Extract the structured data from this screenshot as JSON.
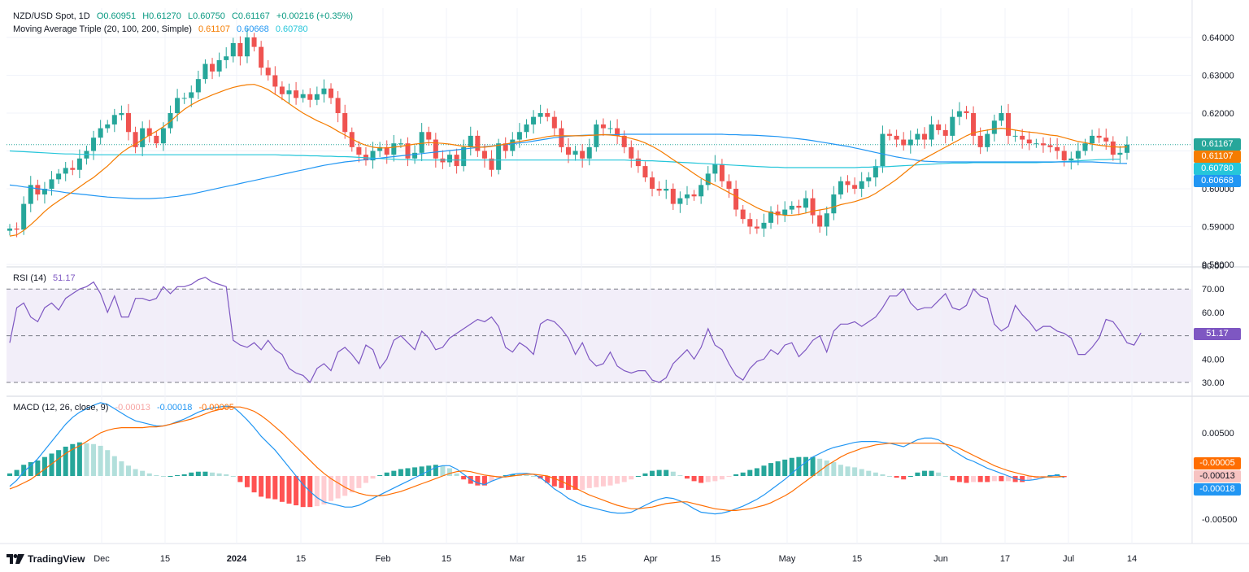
{
  "header": {
    "symbol": "NZD/USD Spot, 1D",
    "open": "O0.60951",
    "high": "H0.61270",
    "low": "L0.60750",
    "close": "C0.61167",
    "change": "+0.00216 (+0.35%)",
    "ma_label": "Moving Average Triple (20, 100, 200, Simple)",
    "ma20": "0.61107",
    "ma100": "0.60668",
    "ma200": "0.60780"
  },
  "rsi": {
    "label": "RSI (14)",
    "value": "51.17"
  },
  "macd": {
    "label": "MACD (12, 26, close, 9)",
    "hist": "-0.00013",
    "macd": "-0.00018",
    "signal": "-0.00005"
  },
  "price_tags": {
    "close": "0.61167",
    "ma20": "0.61107",
    "ma200": "0.60780",
    "ma100": "0.60668"
  },
  "rsi_tag": "51.17",
  "macd_tags": {
    "signal": "-0.00005",
    "hist": "-0.00013",
    "macd": "-0.00018"
  },
  "branding": "TradingView",
  "colors": {
    "up": "#26a69a",
    "down": "#ef5350",
    "ma20": "#f57c00",
    "ma100": "#2196f3",
    "ma200": "#26c6da",
    "rsi": "#7e57c2",
    "macd": "#2196f3",
    "signal": "#ff6d00"
  },
  "chart_data": {
    "type": "candlestick",
    "price_axis": {
      "ticks": [
        "0.64000",
        "0.63000",
        "0.62000",
        "0.61000",
        "0.60000",
        "0.59000",
        "0.58000"
      ],
      "ylim": [
        0.58,
        0.645
      ]
    },
    "x_ticks": [
      "Dec",
      "15",
      "2024",
      "15",
      "Feb",
      "15",
      "Mar",
      "15",
      "Apr",
      "15",
      "May",
      "15",
      "Jun",
      "17",
      "Jul",
      "14"
    ],
    "rsi_axis": {
      "ticks": [
        "80.00",
        "70.00",
        "60.00",
        "50.00",
        "40.00",
        "30.00"
      ],
      "levels": [
        70,
        50,
        30
      ]
    },
    "macd_axis": {
      "ticks": [
        "0.00500",
        "0.00000",
        "-0.00500"
      ]
    },
    "close": [
      0.5895,
      0.5892,
      0.596,
      0.601,
      0.5985,
      0.6,
      0.6025,
      0.604,
      0.6055,
      0.605,
      0.608,
      0.61,
      0.6135,
      0.616,
      0.617,
      0.6195,
      0.62,
      0.615,
      0.611,
      0.616,
      0.614,
      0.612,
      0.616,
      0.62,
      0.624,
      0.624,
      0.6255,
      0.629,
      0.633,
      0.631,
      0.634,
      0.635,
      0.6385,
      0.635,
      0.64,
      0.6375,
      0.632,
      0.63,
      0.627,
      0.625,
      0.626,
      0.624,
      0.625,
      0.6235,
      0.625,
      0.6265,
      0.624,
      0.62,
      0.615,
      0.611,
      0.609,
      0.6075,
      0.61,
      0.611,
      0.609,
      0.612,
      0.612,
      0.608,
      0.6095,
      0.615,
      0.613,
      0.608,
      0.607,
      0.609,
      0.606,
      0.611,
      0.614,
      0.61,
      0.608,
      0.605,
      0.612,
      0.61,
      0.613,
      0.615,
      0.617,
      0.619,
      0.62,
      0.619,
      0.616,
      0.611,
      0.609,
      0.61,
      0.608,
      0.611,
      0.617,
      0.616,
      0.616,
      0.614,
      0.611,
      0.608,
      0.606,
      0.603,
      0.6,
      0.5995,
      0.6,
      0.596,
      0.5975,
      0.5985,
      0.598,
      0.601,
      0.604,
      0.6065,
      0.602,
      0.6,
      0.5945,
      0.592,
      0.59,
      0.5895,
      0.591,
      0.594,
      0.593,
      0.5945,
      0.5955,
      0.595,
      0.5975,
      0.593,
      0.59,
      0.5935,
      0.5985,
      0.602,
      0.601,
      0.6,
      0.602,
      0.603,
      0.606,
      0.6145,
      0.614,
      0.613,
      0.6115,
      0.613,
      0.6145,
      0.613,
      0.617,
      0.6155,
      0.614,
      0.619,
      0.6205,
      0.62,
      0.614,
      0.611,
      0.6145,
      0.618,
      0.62,
      0.614,
      0.614,
      0.613,
      0.612,
      0.612,
      0.6115,
      0.611,
      0.61,
      0.6075,
      0.608,
      0.61,
      0.612,
      0.614,
      0.6135,
      0.6125,
      0.609,
      0.6095,
      0.61167
    ],
    "ma20": [
      0.5875,
      0.5878,
      0.589,
      0.5905,
      0.5922,
      0.594,
      0.5955,
      0.5968,
      0.598,
      0.5992,
      0.6005,
      0.6018,
      0.603,
      0.6045,
      0.606,
      0.6078,
      0.6095,
      0.6108,
      0.6118,
      0.613,
      0.6142,
      0.6152,
      0.6164,
      0.6178,
      0.6195,
      0.621,
      0.6222,
      0.6232,
      0.624,
      0.6248,
      0.6255,
      0.6262,
      0.6268,
      0.6272,
      0.6275,
      0.6276,
      0.627,
      0.6262,
      0.625,
      0.6238,
      0.6225,
      0.6212,
      0.62,
      0.619,
      0.618,
      0.6172,
      0.6163,
      0.6152,
      0.6142,
      0.6132,
      0.6122,
      0.6115,
      0.611,
      0.6108,
      0.6108,
      0.611,
      0.6112,
      0.6115,
      0.6118,
      0.612,
      0.6122,
      0.6121,
      0.612,
      0.6118,
      0.6115,
      0.6112,
      0.6111,
      0.611,
      0.611,
      0.6112,
      0.6115,
      0.6118,
      0.6122,
      0.6125,
      0.6128,
      0.6131,
      0.6134,
      0.6138,
      0.614,
      0.614,
      0.614,
      0.614,
      0.614,
      0.6141,
      0.6142,
      0.6143,
      0.6142,
      0.614,
      0.6137,
      0.6133,
      0.6128,
      0.6121,
      0.6112,
      0.6102,
      0.609,
      0.6077,
      0.6065,
      0.6053,
      0.604,
      0.6028,
      0.6018,
      0.601,
      0.6,
      0.599,
      0.598,
      0.597,
      0.596,
      0.595,
      0.5942,
      0.5937,
      0.5933,
      0.593,
      0.593,
      0.5932,
      0.5936,
      0.5941,
      0.5944,
      0.5947,
      0.5952,
      0.5958,
      0.5962,
      0.5966,
      0.5972,
      0.5978,
      0.5988,
      0.6,
      0.6012,
      0.6025,
      0.604,
      0.6055,
      0.607,
      0.608,
      0.609,
      0.61,
      0.611,
      0.612,
      0.613,
      0.614,
      0.6148,
      0.6152,
      0.6155,
      0.6158,
      0.616,
      0.6158,
      0.6155,
      0.6152,
      0.615,
      0.6148,
      0.6145,
      0.6142,
      0.614,
      0.6135,
      0.613,
      0.6125,
      0.6122,
      0.6118,
      0.6115,
      0.6113,
      0.6111,
      0.611,
      0.61107
    ],
    "ma100": [
      0.601,
      0.6008,
      0.6005,
      0.6003,
      0.6,
      0.5998,
      0.5995,
      0.5993,
      0.599,
      0.5988,
      0.5986,
      0.5984,
      0.5982,
      0.598,
      0.5978,
      0.5977,
      0.5976,
      0.5975,
      0.5974,
      0.5974,
      0.5974,
      0.5975,
      0.5976,
      0.5978,
      0.598,
      0.5983,
      0.5986,
      0.599,
      0.5994,
      0.5998,
      0.6002,
      0.6006,
      0.601,
      0.6014,
      0.6018,
      0.6022,
      0.6026,
      0.603,
      0.6034,
      0.6038,
      0.6042,
      0.6046,
      0.605,
      0.6054,
      0.6058,
      0.6062,
      0.6065,
      0.6068,
      0.6071,
      0.6073,
      0.6075,
      0.6077,
      0.6079,
      0.6081,
      0.6083,
      0.6085,
      0.6087,
      0.6089,
      0.6091,
      0.6093,
      0.6095,
      0.6097,
      0.6099,
      0.6101,
      0.6103,
      0.6105,
      0.6107,
      0.6109,
      0.6111,
      0.6113,
      0.6115,
      0.6117,
      0.6119,
      0.6121,
      0.6123,
      0.6126,
      0.6129,
      0.6132,
      0.6135,
      0.6137,
      0.6139,
      0.614,
      0.6141,
      0.6142,
      0.6142,
      0.6143,
      0.6143,
      0.6143,
      0.6144,
      0.6144,
      0.6144,
      0.6144,
      0.6144,
      0.6144,
      0.6144,
      0.6144,
      0.6144,
      0.6144,
      0.6144,
      0.6144,
      0.6144,
      0.6144,
      0.6144,
      0.6143,
      0.6143,
      0.6142,
      0.6142,
      0.6141,
      0.614,
      0.6139,
      0.6138,
      0.6136,
      0.6134,
      0.6132,
      0.613,
      0.6127,
      0.6124,
      0.6121,
      0.6118,
      0.6115,
      0.6112,
      0.6108,
      0.6104,
      0.61,
      0.6096,
      0.6092,
      0.6088,
      0.6084,
      0.6081,
      0.6078,
      0.6075,
      0.6073,
      0.6072,
      0.6071,
      0.6071,
      0.6071,
      0.6071,
      0.6071,
      0.6071,
      0.6071,
      0.6071,
      0.6071,
      0.6071,
      0.6071,
      0.6071,
      0.6071,
      0.6071,
      0.6071,
      0.6071,
      0.6071,
      0.6071,
      0.6071,
      0.6071,
      0.6071,
      0.6071,
      0.6071,
      0.607,
      0.6069,
      0.6068,
      0.6067,
      0.60668
    ],
    "ma200": [
      0.61,
      0.6099,
      0.6098,
      0.6097,
      0.6096,
      0.6095,
      0.6094,
      0.6093,
      0.6092,
      0.6092,
      0.6091,
      0.6091,
      0.609,
      0.609,
      0.609,
      0.609,
      0.609,
      0.609,
      0.609,
      0.609,
      0.609,
      0.609,
      0.609,
      0.609,
      0.609,
      0.609,
      0.609,
      0.609,
      0.609,
      0.609,
      0.609,
      0.609,
      0.609,
      0.609,
      0.609,
      0.609,
      0.609,
      0.609,
      0.609,
      0.6089,
      0.6089,
      0.6088,
      0.6088,
      0.6087,
      0.6087,
      0.6086,
      0.6086,
      0.6085,
      0.6085,
      0.6084,
      0.6083,
      0.6082,
      0.6081,
      0.608,
      0.6079,
      0.6078,
      0.6077,
      0.6077,
      0.6076,
      0.6076,
      0.6076,
      0.6076,
      0.6076,
      0.6076,
      0.6076,
      0.6076,
      0.6076,
      0.6076,
      0.6076,
      0.6076,
      0.6076,
      0.6076,
      0.6076,
      0.6076,
      0.6076,
      0.6076,
      0.6076,
      0.6076,
      0.6076,
      0.6076,
      0.6076,
      0.6076,
      0.6076,
      0.6076,
      0.6076,
      0.6076,
      0.6076,
      0.6076,
      0.6076,
      0.6075,
      0.6075,
      0.6074,
      0.6074,
      0.6073,
      0.6072,
      0.6071,
      0.607,
      0.6069,
      0.6068,
      0.6067,
      0.6066,
      0.6065,
      0.6064,
      0.6063,
      0.6062,
      0.6061,
      0.606,
      0.6059,
      0.6058,
      0.6057,
      0.6057,
      0.6056,
      0.6056,
      0.6056,
      0.6056,
      0.6056,
      0.6056,
      0.6056,
      0.6056,
      0.6056,
      0.6056,
      0.6056,
      0.6057,
      0.6057,
      0.6058,
      0.6058,
      0.6059,
      0.606,
      0.6061,
      0.6062,
      0.6063,
      0.6064,
      0.6065,
      0.6066,
      0.6067,
      0.6068,
      0.6068,
      0.6068,
      0.6069,
      0.6069,
      0.6069,
      0.6069,
      0.6069,
      0.6069,
      0.6069,
      0.6069,
      0.6069,
      0.6069,
      0.607,
      0.607,
      0.6071,
      0.6072,
      0.6073,
      0.6074,
      0.6075,
      0.6076,
      0.6077,
      0.6077,
      0.6078,
      0.6078
    ],
    "rsi": [
      47,
      62,
      64,
      58,
      56,
      62,
      64,
      61,
      66,
      68,
      70,
      71,
      73,
      68,
      60,
      67,
      58,
      58,
      66,
      66,
      65,
      66,
      71,
      68,
      71,
      71,
      72,
      74,
      75,
      73,
      72,
      71,
      48,
      46,
      45,
      47,
      44,
      48,
      44,
      42,
      36,
      34,
      33,
      30,
      36,
      38,
      35,
      43,
      45,
      42,
      38,
      46,
      44,
      36,
      40,
      48,
      50,
      47,
      44,
      52,
      49,
      44,
      45,
      49,
      51,
      53,
      55,
      57,
      56,
      58,
      54,
      45,
      43,
      47,
      45,
      42,
      55,
      57,
      56,
      53,
      49,
      42,
      47,
      40,
      37,
      38,
      43,
      37,
      35,
      34,
      35,
      35,
      31,
      30,
      32,
      38,
      41,
      44,
      40,
      45,
      53,
      46,
      44,
      38,
      33,
      31,
      36,
      39,
      40,
      44,
      42,
      46,
      47,
      41,
      44,
      48,
      50,
      43,
      52,
      55,
      55,
      56,
      54,
      56,
      58,
      62,
      67,
      67,
      70,
      64,
      61,
      62,
      62,
      65,
      68,
      62,
      61,
      63,
      70,
      67,
      66,
      55,
      52,
      54,
      63,
      59,
      56,
      52,
      54,
      54,
      52,
      51,
      49,
      42,
      42,
      45,
      49,
      57,
      56,
      52,
      47,
      46,
      51.17
    ],
    "macd_line": [
      -0.0012,
      -0.0005,
      0.0005,
      0.0012,
      0.002,
      0.003,
      0.004,
      0.005,
      0.006,
      0.0068,
      0.0074,
      0.0078,
      0.0082,
      0.0085,
      0.0083,
      0.0078,
      0.0073,
      0.0068,
      0.0064,
      0.0062,
      0.006,
      0.0058,
      0.0058,
      0.006,
      0.0063,
      0.0066,
      0.007,
      0.0074,
      0.0077,
      0.0079,
      0.008,
      0.0081,
      0.008,
      0.0073,
      0.0065,
      0.0056,
      0.0046,
      0.0038,
      0.003,
      0.002,
      0.001,
      0.0,
      -0.001,
      -0.0018,
      -0.0025,
      -0.003,
      -0.0032,
      -0.0034,
      -0.0036,
      -0.0036,
      -0.0034,
      -0.003,
      -0.0026,
      -0.0022,
      -0.0018,
      -0.0014,
      -0.001,
      -0.0006,
      -0.0002,
      0.0002,
      0.0006,
      0.001,
      0.0012,
      0.0012,
      0.0008,
      0.0002,
      -0.0004,
      -0.0008,
      -0.001,
      -0.0006,
      -0.0003,
      0.0,
      0.0002,
      0.0003,
      0.0003,
      0.0002,
      -0.0002,
      -0.0008,
      -0.0015,
      -0.002,
      -0.0026,
      -0.003,
      -0.0034,
      -0.0036,
      -0.0038,
      -0.004,
      -0.0042,
      -0.0043,
      -0.0043,
      -0.0042,
      -0.0038,
      -0.0034,
      -0.003,
      -0.0027,
      -0.0025,
      -0.0026,
      -0.0029,
      -0.0033,
      -0.0038,
      -0.0042,
      -0.0043,
      -0.0044,
      -0.0043,
      -0.0041,
      -0.0038,
      -0.0035,
      -0.0031,
      -0.0027,
      -0.0022,
      -0.0016,
      -0.001,
      -0.0004,
      0.0003,
      0.001,
      0.0016,
      0.0022,
      0.0026,
      0.003,
      0.0033,
      0.0035,
      0.0037,
      0.0039,
      0.004,
      0.004,
      0.004,
      0.0039,
      0.0038,
      0.0036,
      0.0034,
      0.0038,
      0.0042,
      0.0044,
      0.0044,
      0.0042,
      0.0037,
      0.003,
      0.0025,
      0.002,
      0.0017,
      0.0013,
      0.0009,
      0.0006,
      0.0003,
      0.0,
      -0.0003,
      -0.0005,
      -0.0005,
      -0.0004,
      -0.0002,
      0.0,
      0.0001,
      -0.00018
    ],
    "signal_line": [
      -0.0015,
      -0.0012,
      -0.0008,
      -0.0004,
      0.0002,
      0.0008,
      0.0014,
      0.002,
      0.0026,
      0.0031,
      0.0035,
      0.004,
      0.0045,
      0.005,
      0.0053,
      0.0055,
      0.0056,
      0.0056,
      0.0056,
      0.0056,
      0.0057,
      0.0057,
      0.0058,
      0.006,
      0.0062,
      0.0064,
      0.0066,
      0.0069,
      0.0072,
      0.0075,
      0.0077,
      0.0079,
      0.008,
      0.008,
      0.0078,
      0.0075,
      0.007,
      0.0064,
      0.0057,
      0.005,
      0.0042,
      0.0034,
      0.0026,
      0.0018,
      0.001,
      0.0003,
      -0.0003,
      -0.0008,
      -0.0013,
      -0.0017,
      -0.002,
      -0.0022,
      -0.0023,
      -0.0023,
      -0.0022,
      -0.002,
      -0.0018,
      -0.0015,
      -0.0012,
      -0.0009,
      -0.0006,
      -0.0003,
      0.0,
      0.0003,
      0.0005,
      0.0006,
      0.0005,
      0.0003,
      0.0001,
      0.0,
      -0.0001,
      -0.0001,
      0.0,
      0.0001,
      0.0002,
      0.0002,
      0.0001,
      0.0,
      -0.0003,
      -0.0006,
      -0.001,
      -0.0014,
      -0.0018,
      -0.0022,
      -0.0025,
      -0.0028,
      -0.0031,
      -0.0034,
      -0.0036,
      -0.0038,
      -0.0038,
      -0.0037,
      -0.0036,
      -0.0034,
      -0.0032,
      -0.0031,
      -0.003,
      -0.003,
      -0.0032,
      -0.0034,
      -0.0036,
      -0.0038,
      -0.0039,
      -0.004,
      -0.004,
      -0.0039,
      -0.0038,
      -0.0036,
      -0.0034,
      -0.0031,
      -0.0027,
      -0.0023,
      -0.0018,
      -0.0012,
      -0.0006,
      0.0,
      0.0006,
      0.0012,
      0.0017,
      0.0022,
      0.0026,
      0.0029,
      0.0032,
      0.0034,
      0.0036,
      0.0037,
      0.0038,
      0.0038,
      0.0038,
      0.0038,
      0.0038,
      0.0038,
      0.0038,
      0.0038,
      0.0037,
      0.0035,
      0.0032,
      0.0028,
      0.0024,
      0.002,
      0.0016,
      0.0012,
      0.0009,
      0.0006,
      0.0004,
      0.0002,
      0.0,
      -0.0001,
      -0.0001,
      -0.0001,
      -0.0001,
      -5e-05
    ]
  }
}
